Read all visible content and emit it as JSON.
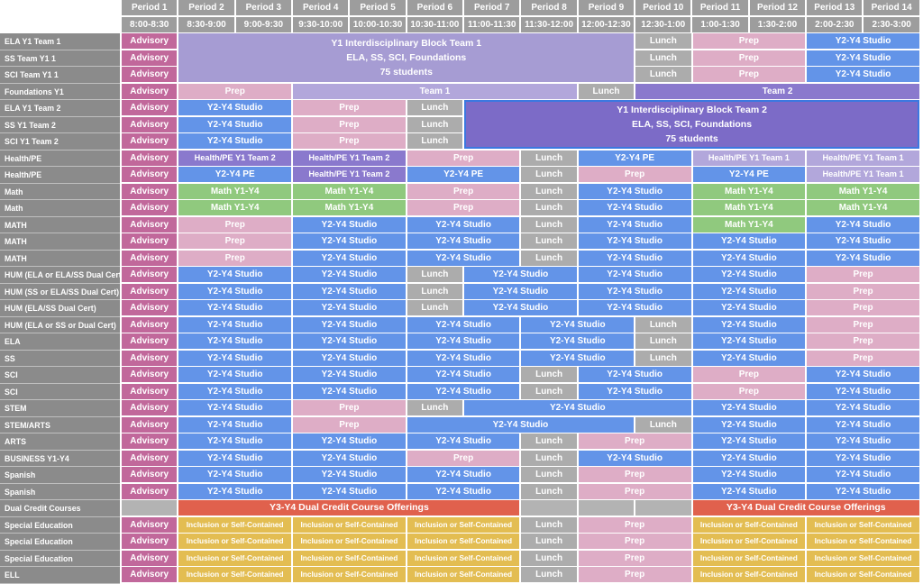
{
  "palette": {
    "header_gray": "#9D9D9D",
    "label_gray": "#8B8B8B",
    "adv": "#C1689B",
    "prep": "#DEADC6",
    "studio": "#6394E8",
    "lunch": "#ACACAC",
    "green": "#90C97E",
    "lpurple": "#B2A7DB",
    "mpurple": "#8A79CD",
    "blockpurple": "#A69CD3",
    "dpurple": "#7C6BC7",
    "gold": "#E3BD52",
    "salmon": "#E0614D",
    "empty": "#B3B3B3",
    "block2_border": "#3C78E0"
  },
  "labels": {
    "ADV": "Advisory",
    "STU": "Y2-Y4 Studio",
    "PREP": "Prep",
    "LUNCH": "Lunch",
    "PE": "Y2-Y4 PE",
    "HPE1": "Health/PE Y1 Team 1",
    "HPE2": "Health/PE Y1 Team 2",
    "MATH": "Math Y1-Y4",
    "IOSC": "Inclusion or Self-Contained",
    "T1": "Team 1",
    "T2": "Team 2",
    "DC": "Y3-Y4 Dual Credit Course Offerings",
    "EMPTY": "",
    "GAP": ""
  },
  "header": {
    "periods": [
      {
        "label": "Period 1",
        "time": "8:00-8:30"
      },
      {
        "label": "Period 2",
        "time": "8:30-9:00"
      },
      {
        "label": "Period 3",
        "time": "9:00-9:30"
      },
      {
        "label": "Period 4",
        "time": "9:30-10:00"
      },
      {
        "label": "Period 5",
        "time": "10:00-10:30"
      },
      {
        "label": "Period 6",
        "time": "10:30-11:00"
      },
      {
        "label": "Period 7",
        "time": "11:00-11:30"
      },
      {
        "label": "Period 8",
        "time": "11:30-12:00"
      },
      {
        "label": "Period 9",
        "time": "12:00-12:30"
      },
      {
        "label": "Period 10",
        "time": "12:30-1:00"
      },
      {
        "label": "Period 11",
        "time": "1:00-1:30"
      },
      {
        "label": "Period 12",
        "time": "1:30-2:00"
      },
      {
        "label": "Period 13",
        "time": "2:00-2:30"
      },
      {
        "label": "Period 14",
        "time": "2:30-3:00"
      }
    ]
  },
  "blocks": {
    "team1": {
      "title": "Y1 Interdisciplinary Block Team 1",
      "subtitle": "ELA, SS, SCI, Foundations",
      "students": "75 students"
    },
    "team2": {
      "title": "Y1 Interdisciplinary Block Team 2",
      "subtitle": "ELA, SS, SCI, Foundations",
      "students": "75 students"
    }
  },
  "patterns": {
    "team1_row": [
      [
        "ADV",
        "adv",
        1
      ],
      [
        "GAP",
        "none",
        8
      ],
      [
        "LUNCH",
        "lunch",
        1
      ],
      [
        "PREP",
        "prep",
        2
      ],
      [
        "STU",
        "studio",
        2
      ]
    ],
    "foundations": [
      [
        "ADV",
        "adv",
        1
      ],
      [
        "PREP",
        "prep",
        2
      ],
      [
        "T1",
        "lpurple",
        5
      ],
      [
        "LUNCH",
        "lunch",
        1
      ],
      [
        "T2",
        "mpurple",
        5
      ]
    ],
    "team2_row": [
      [
        "ADV",
        "adv",
        1
      ],
      [
        "STU",
        "studio",
        2
      ],
      [
        "PREP",
        "prep",
        2
      ],
      [
        "LUNCH",
        "lunch",
        1
      ],
      [
        "GAP",
        "none",
        8
      ]
    ],
    "hpe_a": [
      [
        "ADV",
        "adv",
        1
      ],
      [
        "HPE2",
        "mpurple",
        2
      ],
      [
        "HPE2",
        "mpurple",
        2
      ],
      [
        "PREP",
        "prep",
        2
      ],
      [
        "LUNCH",
        "lunch",
        1
      ],
      [
        "PE",
        "studio",
        2
      ],
      [
        "HPE1",
        "lpurple",
        2
      ],
      [
        "HPE1",
        "lpurple",
        2
      ]
    ],
    "hpe_b": [
      [
        "ADV",
        "adv",
        1
      ],
      [
        "PE",
        "studio",
        2
      ],
      [
        "HPE2",
        "mpurple",
        2
      ],
      [
        "PE",
        "studio",
        2
      ],
      [
        "LUNCH",
        "lunch",
        1
      ],
      [
        "PREP",
        "prep",
        2
      ],
      [
        "PE",
        "studio",
        2
      ],
      [
        "HPE1",
        "lpurple",
        2
      ]
    ],
    "math_a": [
      [
        "ADV",
        "adv",
        1
      ],
      [
        "MATH",
        "green",
        2
      ],
      [
        "MATH",
        "green",
        2
      ],
      [
        "PREP",
        "prep",
        2
      ],
      [
        "LUNCH",
        "lunch",
        1
      ],
      [
        "STU",
        "studio",
        2
      ],
      [
        "MATH",
        "green",
        2
      ],
      [
        "MATH",
        "green",
        2
      ]
    ],
    "math_b": [
      [
        "ADV",
        "adv",
        1
      ],
      [
        "PREP",
        "prep",
        2
      ],
      [
        "STU",
        "studio",
        2
      ],
      [
        "STU",
        "studio",
        2
      ],
      [
        "LUNCH",
        "lunch",
        1
      ],
      [
        "STU",
        "studio",
        2
      ],
      [
        "MATH",
        "green",
        2
      ],
      [
        "STU",
        "studio",
        2
      ]
    ],
    "math_c": [
      [
        "ADV",
        "adv",
        1
      ],
      [
        "PREP",
        "prep",
        2
      ],
      [
        "STU",
        "studio",
        2
      ],
      [
        "STU",
        "studio",
        2
      ],
      [
        "LUNCH",
        "lunch",
        1
      ],
      [
        "STU",
        "studio",
        2
      ],
      [
        "STU",
        "studio",
        2
      ],
      [
        "STU",
        "studio",
        2
      ]
    ],
    "hum_a": [
      [
        "ADV",
        "adv",
        1
      ],
      [
        "STU",
        "studio",
        2
      ],
      [
        "STU",
        "studio",
        2
      ],
      [
        "LUNCH",
        "lunch",
        1
      ],
      [
        "STU",
        "studio",
        2
      ],
      [
        "STU",
        "studio",
        2
      ],
      [
        "STU",
        "studio",
        2
      ],
      [
        "PREP",
        "prep",
        2
      ]
    ],
    "hum_b": [
      [
        "ADV",
        "adv",
        1
      ],
      [
        "STU",
        "studio",
        2
      ],
      [
        "STU",
        "studio",
        2
      ],
      [
        "STU",
        "studio",
        2
      ],
      [
        "STU",
        "studio",
        2
      ],
      [
        "LUNCH",
        "lunch",
        1
      ],
      [
        "STU",
        "studio",
        2
      ],
      [
        "PREP",
        "prep",
        2
      ]
    ],
    "sci": [
      [
        "ADV",
        "adv",
        1
      ],
      [
        "STU",
        "studio",
        2
      ],
      [
        "STU",
        "studio",
        2
      ],
      [
        "STU",
        "studio",
        2
      ],
      [
        "LUNCH",
        "lunch",
        1
      ],
      [
        "STU",
        "studio",
        2
      ],
      [
        "PREP",
        "prep",
        2
      ],
      [
        "STU",
        "studio",
        2
      ]
    ],
    "stem": [
      [
        "ADV",
        "adv",
        1
      ],
      [
        "STU",
        "studio",
        2
      ],
      [
        "PREP",
        "prep",
        2
      ],
      [
        "LUNCH",
        "lunch",
        1
      ],
      [
        "STU",
        "studio",
        4
      ],
      [
        "STU",
        "studio",
        2
      ],
      [
        "STU",
        "studio",
        2
      ]
    ],
    "stem_arts": [
      [
        "ADV",
        "adv",
        1
      ],
      [
        "STU",
        "studio",
        2
      ],
      [
        "PREP",
        "prep",
        2
      ],
      [
        "STU",
        "studio",
        4
      ],
      [
        "LUNCH",
        "lunch",
        1
      ],
      [
        "STU",
        "studio",
        2
      ],
      [
        "STU",
        "studio",
        2
      ]
    ],
    "arts": [
      [
        "ADV",
        "adv",
        1
      ],
      [
        "STU",
        "studio",
        2
      ],
      [
        "STU",
        "studio",
        2
      ],
      [
        "STU",
        "studio",
        2
      ],
      [
        "LUNCH",
        "lunch",
        1
      ],
      [
        "PREP",
        "prep",
        2
      ],
      [
        "STU",
        "studio",
        2
      ],
      [
        "STU",
        "studio",
        2
      ]
    ],
    "business": [
      [
        "ADV",
        "adv",
        1
      ],
      [
        "STU",
        "studio",
        2
      ],
      [
        "STU",
        "studio",
        2
      ],
      [
        "PREP",
        "prep",
        2
      ],
      [
        "LUNCH",
        "lunch",
        1
      ],
      [
        "STU",
        "studio",
        2
      ],
      [
        "STU",
        "studio",
        2
      ],
      [
        "STU",
        "studio",
        2
      ]
    ],
    "dual_credit": [
      [
        "EMPTY",
        "empty",
        1
      ],
      [
        "DC",
        "salmon",
        6
      ],
      [
        "EMPTY",
        "empty",
        1
      ],
      [
        "EMPTY",
        "empty",
        1
      ],
      [
        "EMPTY",
        "empty",
        1
      ],
      [
        "DC",
        "salmon",
        4
      ]
    ],
    "sped": [
      [
        "ADV",
        "adv",
        1
      ],
      [
        "IOSC",
        "gold",
        2
      ],
      [
        "IOSC",
        "gold",
        2
      ],
      [
        "IOSC",
        "gold",
        2
      ],
      [
        "LUNCH",
        "lunch",
        1
      ],
      [
        "PREP",
        "prep",
        2
      ],
      [
        "IOSC",
        "gold",
        2
      ],
      [
        "IOSC",
        "gold",
        2
      ]
    ]
  },
  "rows": [
    {
      "label": "ELA Y1 Team 1",
      "pattern": "team1_row"
    },
    {
      "label": "SS Team Y1 1",
      "pattern": "team1_row"
    },
    {
      "label": "SCI Team Y1 1",
      "pattern": "team1_row"
    },
    {
      "label": "Foundations Y1",
      "pattern": "foundations"
    },
    {
      "label": "ELA Y1 Team 2",
      "pattern": "team2_row"
    },
    {
      "label": "SS Y1 Team 2",
      "pattern": "team2_row"
    },
    {
      "label": "SCI Y1 Team 2",
      "pattern": "team2_row"
    },
    {
      "label": "Health/PE",
      "pattern": "hpe_a"
    },
    {
      "label": "Health/PE",
      "pattern": "hpe_b"
    },
    {
      "label": "Math",
      "pattern": "math_a"
    },
    {
      "label": "Math",
      "pattern": "math_a"
    },
    {
      "label": "MATH",
      "pattern": "math_b"
    },
    {
      "label": "MATH",
      "pattern": "math_c"
    },
    {
      "label": "MATH",
      "pattern": "math_c"
    },
    {
      "label": "HUM (ELA or ELA/SS Dual Cert)",
      "pattern": "hum_a"
    },
    {
      "label": "HUM (SS or ELA/SS Dual Cert)",
      "pattern": "hum_a"
    },
    {
      "label": "HUM (ELA/SS Dual Cert)",
      "pattern": "hum_a"
    },
    {
      "label": "HUM (ELA or SS or Dual Cert)",
      "pattern": "hum_b"
    },
    {
      "label": "ELA",
      "pattern": "hum_b"
    },
    {
      "label": "SS",
      "pattern": "hum_b"
    },
    {
      "label": "SCI",
      "pattern": "sci"
    },
    {
      "label": "SCI",
      "pattern": "sci"
    },
    {
      "label": "STEM",
      "pattern": "stem"
    },
    {
      "label": "STEM/ARTS",
      "pattern": "stem_arts"
    },
    {
      "label": "ARTS",
      "pattern": "arts"
    },
    {
      "label": "BUSINESS Y1-Y4",
      "pattern": "business"
    },
    {
      "label": "Spanish",
      "pattern": "arts"
    },
    {
      "label": "Spanish",
      "pattern": "arts"
    },
    {
      "label": "Dual Credit Courses",
      "pattern": "dual_credit"
    },
    {
      "label": "Special Education",
      "pattern": "sped"
    },
    {
      "label": "Special Education",
      "pattern": "sped"
    },
    {
      "label": "Special Education",
      "pattern": "sped"
    },
    {
      "label": "ELL",
      "pattern": "sped"
    }
  ]
}
